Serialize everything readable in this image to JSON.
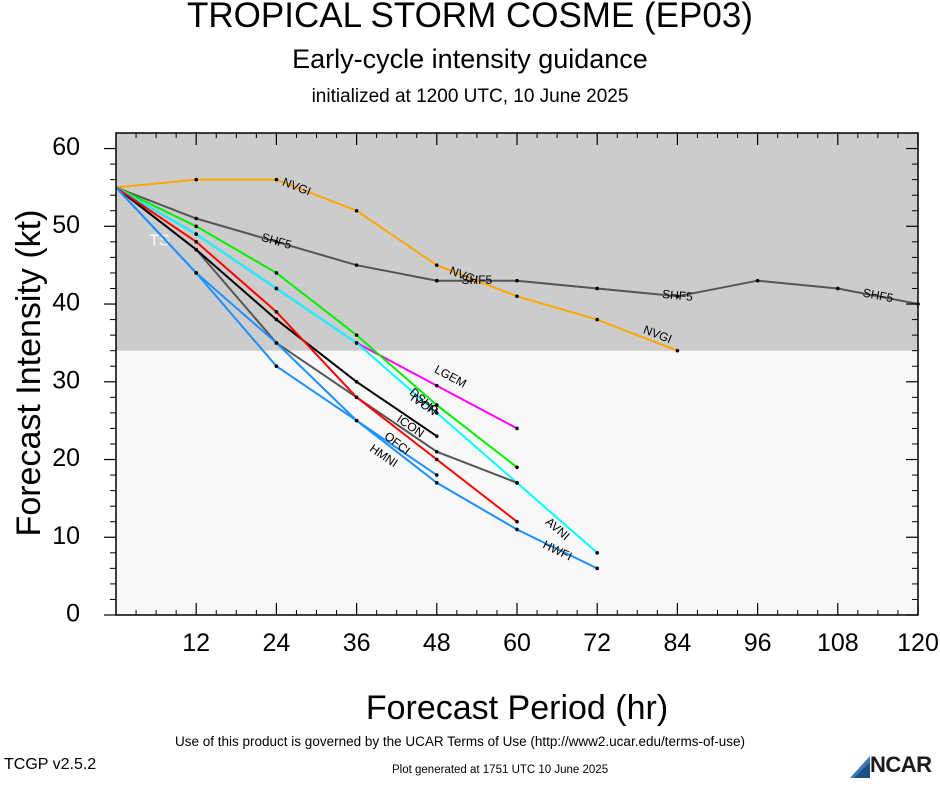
{
  "chart_data": {
    "type": "line",
    "title": "TROPICAL STORM COSME (EP03)",
    "subtitle": "Early-cycle intensity guidance",
    "initialized": "initialized at 1200 UTC, 10 June 2025",
    "xlabel": "Forecast Period (hr)",
    "ylabel": "Forecast Intensity (kt)",
    "xlim": [
      0,
      120
    ],
    "ylim": [
      0,
      62
    ],
    "xticks": [
      12,
      24,
      36,
      48,
      60,
      72,
      84,
      96,
      108,
      120
    ],
    "yticks": [
      0,
      10,
      20,
      30,
      40,
      50,
      60
    ],
    "shaded_band": {
      "label": "TS",
      "from": 34,
      "to": 64,
      "color": "#cccccc"
    },
    "background_color": "#f8f8f8",
    "series": [
      {
        "name": "SHF5",
        "color": "#555555",
        "label_points": [
          [
            24,
            48
          ],
          [
            54,
            43
          ],
          [
            84,
            41
          ],
          [
            114,
            41
          ]
        ],
        "points": [
          [
            0,
            55
          ],
          [
            12,
            51
          ],
          [
            24,
            48
          ],
          [
            36,
            45
          ],
          [
            48,
            43
          ],
          [
            60,
            43
          ],
          [
            72,
            42
          ],
          [
            84,
            41
          ],
          [
            96,
            43
          ],
          [
            108,
            42
          ],
          [
            120,
            40
          ]
        ]
      },
      {
        "name": "NVGI",
        "color": "#ffa500",
        "label_points": [
          [
            27,
            55
          ],
          [
            52,
            43.6
          ],
          [
            81,
            36
          ]
        ],
        "points": [
          [
            0,
            55
          ],
          [
            12,
            56
          ],
          [
            24,
            56
          ],
          [
            36,
            52
          ],
          [
            48,
            45
          ],
          [
            60,
            41
          ],
          [
            72,
            38
          ],
          [
            84,
            34
          ]
        ]
      },
      {
        "name": "LGEM",
        "color": "#ff00ff",
        "label_points": [
          [
            50,
            30.6
          ]
        ],
        "points": [
          [
            0,
            55
          ],
          [
            12,
            49
          ],
          [
            24,
            42
          ],
          [
            36,
            35
          ],
          [
            48,
            29.5
          ],
          [
            60,
            24
          ]
        ]
      },
      {
        "name": "DSHP",
        "color": "#00ee00",
        "label_points": [
          [
            46,
            27.4
          ]
        ],
        "points": [
          [
            0,
            55
          ],
          [
            12,
            50
          ],
          [
            24,
            44
          ],
          [
            36,
            36
          ],
          [
            48,
            27
          ],
          [
            60,
            19
          ]
        ]
      },
      {
        "name": "AVNI",
        "color": "#00ffff",
        "label_points": [
          [
            66,
            11
          ]
        ],
        "points": [
          [
            0,
            55
          ],
          [
            12,
            49
          ],
          [
            24,
            42
          ],
          [
            36,
            35
          ],
          [
            48,
            26
          ],
          [
            60,
            17
          ],
          [
            72,
            8
          ]
        ]
      },
      {
        "name": "IVCN",
        "color": "#555555",
        "label_points": [
          [
            46,
            27
          ]
        ],
        "points": [
          [
            0,
            55
          ],
          [
            12,
            47
          ],
          [
            24,
            35
          ],
          [
            36,
            28
          ],
          [
            48,
            21
          ],
          [
            60,
            17
          ]
        ]
      },
      {
        "name": "ICON",
        "color": "#000000",
        "label_points": [
          [
            44,
            24.2
          ]
        ],
        "points": [
          [
            0,
            55
          ],
          [
            12,
            47
          ],
          [
            24,
            38
          ],
          [
            36,
            30
          ],
          [
            48,
            23
          ]
        ]
      },
      {
        "name": "OFCI",
        "color": "#ff0000",
        "label_points": [
          [
            42,
            22
          ]
        ],
        "points": [
          [
            0,
            55
          ],
          [
            12,
            48
          ],
          [
            24,
            39
          ],
          [
            36,
            28
          ],
          [
            48,
            20
          ],
          [
            60,
            12
          ]
        ]
      },
      {
        "name": "HWFI",
        "color": "#1e90ff",
        "label_points": [
          [
            66,
            8.2
          ]
        ],
        "points": [
          [
            0,
            55
          ],
          [
            12,
            44
          ],
          [
            24,
            32
          ],
          [
            36,
            25
          ],
          [
            48,
            17
          ],
          [
            60,
            11
          ],
          [
            72,
            6
          ]
        ]
      },
      {
        "name": "HMNI",
        "color": "#1e90ff",
        "label_points": [
          [
            40,
            20.4
          ]
        ],
        "points": [
          [
            0,
            55
          ],
          [
            12,
            44
          ],
          [
            24,
            35
          ],
          [
            36,
            25
          ],
          [
            48,
            18
          ]
        ]
      }
    ]
  },
  "footer": {
    "terms": "Use of this product is governed by the UCAR Terms of Use (http://www2.ucar.edu/terms-of-use)",
    "version": "TCGP v2.5.2",
    "generated": "Plot generated at 1751 UTC   10 June 2025",
    "logo_text": "NCAR"
  }
}
